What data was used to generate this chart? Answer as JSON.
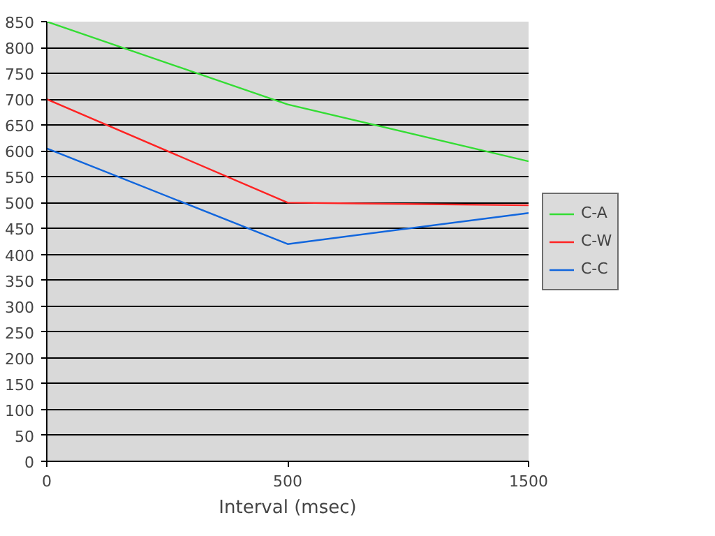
{
  "chart_data": {
    "type": "line",
    "xlabel": "Interval (msec)",
    "categories": [
      "0",
      "500",
      "1500"
    ],
    "series": [
      {
        "name": "C-A",
        "color": "#33dd33",
        "values": [
          850,
          690,
          580
        ]
      },
      {
        "name": "C-W",
        "color": "#ff2222",
        "values": [
          700,
          500,
          495
        ]
      },
      {
        "name": "C-C",
        "color": "#1166dd",
        "values": [
          605,
          420,
          480
        ]
      }
    ],
    "ylim": [
      0,
      850
    ],
    "yticks": [
      0,
      50,
      100,
      150,
      200,
      250,
      300,
      350,
      400,
      450,
      500,
      550,
      600,
      650,
      700,
      750,
      800,
      850
    ],
    "grid": "y",
    "legend": "right",
    "marker": "none",
    "line_style": "solid"
  }
}
